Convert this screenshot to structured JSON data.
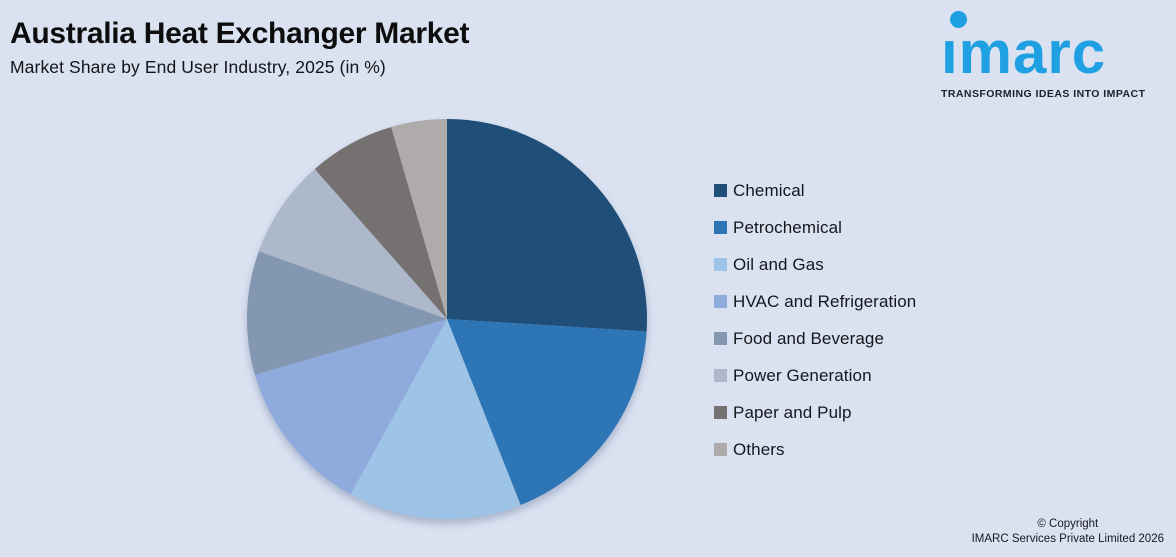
{
  "header": {
    "title": "Australia Heat Exchanger Market",
    "subtitle": "Market Share by End User Industry, 2025 (in %)"
  },
  "logo": {
    "brand": "imarc",
    "tagline": "TRANSFORMING IDEAS INTO IMPACT",
    "brand_color": "#1FA0E2"
  },
  "chart_data": {
    "type": "pie",
    "title": "Australia Heat Exchanger Market",
    "subtitle": "Market Share by End User Industry, 2025 (in %)",
    "unit": "%",
    "start_angle_deg": 0,
    "direction": "clockwise",
    "legend_position": "right",
    "data_labels_shown": false,
    "categories": [
      "Chemical",
      "Petrochemical",
      "Oil and Gas",
      "HVAC and Refrigeration",
      "Food and Beverage",
      "Power Generation",
      "Paper and Pulp",
      "Others"
    ],
    "values": [
      26,
      18,
      14,
      12.5,
      10,
      8,
      7,
      4.5
    ],
    "colors": [
      "#1F4E79",
      "#2E75B6",
      "#9DC3E6",
      "#8FAADC",
      "#8497B0",
      "#ADB9CA",
      "#767171",
      "#AFABAB"
    ]
  },
  "footer": {
    "line1": "© Copyright",
    "line2": "IMARC Services Private Limited 2026"
  },
  "colors": {
    "background": "#DAE2F1",
    "title_text": "#0D0D0D"
  }
}
